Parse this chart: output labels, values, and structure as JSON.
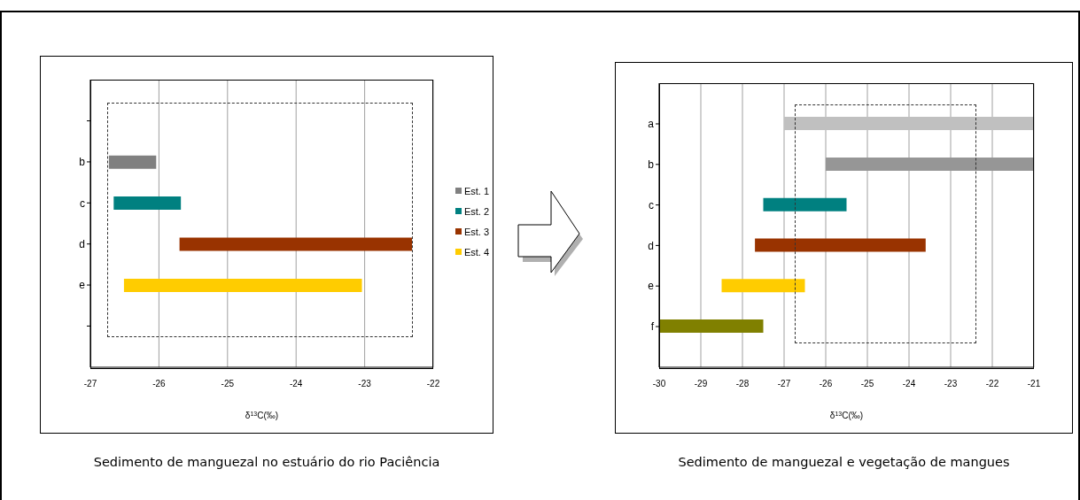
{
  "chart_data": [
    {
      "type": "bar",
      "orientation": "horizontal",
      "title": "Sedimento de manguezal no estuário do rio Paciência",
      "xlabel": "δ$^{13}$C(‰)",
      "categories": [
        null,
        "b",
        "c",
        "d",
        "e",
        null
      ],
      "series": [
        {
          "name": "Est. 1",
          "color": "#808080",
          "values": [
            null,
            0.69,
            null,
            null,
            null,
            null
          ],
          "base": [
            null,
            -26.73,
            null,
            null,
            null,
            null
          ]
        },
        {
          "name": "Est. 2",
          "color": "#008080",
          "values": [
            null,
            null,
            0.98,
            null,
            null,
            null
          ],
          "base": [
            null,
            null,
            -26.66,
            null,
            null,
            null
          ]
        },
        {
          "name": "Est. 3",
          "color": "#993300",
          "values": [
            null,
            null,
            null,
            3.39,
            null,
            null
          ],
          "base": [
            null,
            null,
            null,
            -25.7,
            null,
            null
          ]
        },
        {
          "name": "Est. 4",
          "color": "#ffcc00",
          "values": [
            null,
            null,
            null,
            null,
            3.47,
            null
          ],
          "base": [
            null,
            null,
            null,
            null,
            -26.51,
            null
          ]
        }
      ],
      "xlim": [
        -27,
        -22
      ],
      "xticks": [
        -27,
        -26,
        -25,
        -24,
        -23,
        -22
      ],
      "grid": "x",
      "legend": "right"
    },
    {
      "type": "bar",
      "orientation": "horizontal",
      "title": "Sedimento de manguezal e vegetação de mangues",
      "xlabel": "δ$^{13}$C(‰)",
      "categories": [
        "a",
        "b",
        "c",
        "d",
        "e",
        "f"
      ],
      "series": [
        {
          "colors": [
            "#c0c0c0",
            "#969696",
            "#008080",
            "#993300",
            "#ffcc00",
            "#808000"
          ],
          "values": [
            6.0,
            5.0,
            2.0,
            4.1,
            2.0,
            2.5
          ],
          "base": [
            -27.0,
            -26.0,
            -27.5,
            -27.7,
            -28.5,
            -30.0
          ]
        }
      ],
      "xlim": [
        -30,
        -21
      ],
      "xticks": [
        -30,
        -29,
        -28,
        -27,
        -26,
        -25,
        -24,
        -23,
        -22,
        -21
      ],
      "grid": "x",
      "legend": false
    }
  ]
}
